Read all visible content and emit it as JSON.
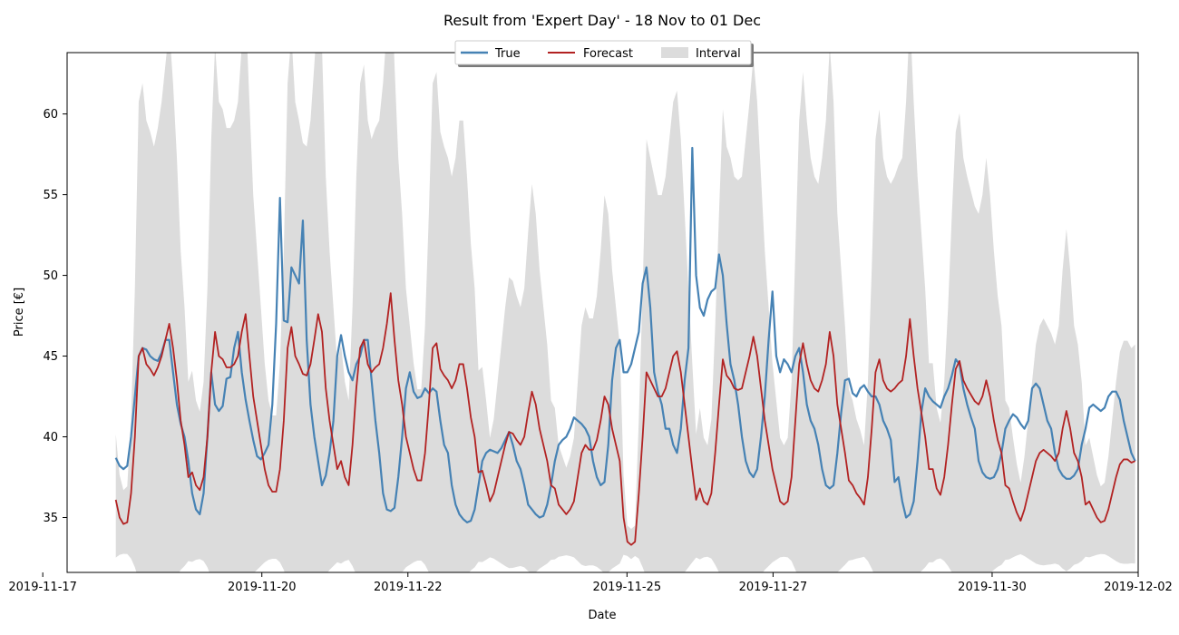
{
  "chart_data": {
    "type": "line",
    "title": "Result from 'Expert Day' - 18 Nov to 01 Dec",
    "xlabel": "Date",
    "ylabel": "Price [€]",
    "xlim": [
      "2019-11-17 08:00",
      "2019-12-02 00:00"
    ],
    "ylim": [
      31.6,
      63.8
    ],
    "x_ticks": [
      "2019-11-17",
      "2019-11-20",
      "2019-11-22",
      "2019-11-25",
      "2019-11-27",
      "2019-11-30",
      "2019-12-02"
    ],
    "y_ticks": [
      35,
      40,
      45,
      50,
      55,
      60
    ],
    "legend": {
      "placement": "top-center",
      "entries": [
        "True",
        "Forecast",
        "Interval"
      ]
    },
    "colors": {
      "true": "#4682b4",
      "forecast": "#b22222",
      "interval": "#dcdcdc"
    },
    "x_start": "2019-11-18 00:00",
    "x_end": "2019-12-01 23:00",
    "series": [
      {
        "name": "True",
        "values": [
          38.7,
          38.2,
          38.0,
          38.2,
          40.0,
          42.5,
          45.0,
          45.5,
          45.4,
          45.0,
          44.8,
          44.7,
          45.2,
          46.0,
          46.0,
          44.0,
          42.0,
          40.8,
          40.0,
          38.5,
          36.5,
          35.5,
          35.2,
          36.5,
          40.0,
          44.0,
          42.0,
          41.6,
          41.9,
          43.6,
          43.7,
          45.5,
          46.5,
          44.0,
          42.3,
          41.0,
          39.8,
          38.8,
          38.6,
          39.0,
          39.5,
          42.0,
          47.0,
          54.8,
          47.2,
          47.1,
          50.5,
          50.0,
          49.5,
          53.4,
          46.0,
          42.0,
          40.0,
          38.5,
          37.0,
          37.6,
          39.0,
          41.0,
          45.0,
          46.3,
          45.0,
          44.0,
          43.5,
          44.5,
          45.0,
          46.0,
          46.0,
          43.5,
          41.0,
          39.0,
          36.5,
          35.5,
          35.4,
          35.6,
          37.5,
          40.0,
          43.0,
          44.0,
          42.8,
          42.4,
          42.5,
          43.0,
          42.7,
          43.0,
          42.8,
          41.0,
          39.5,
          39.0,
          37.0,
          35.8,
          35.2,
          34.9,
          34.7,
          34.8,
          35.5,
          37.0,
          38.5,
          39.0,
          39.2,
          39.1,
          39.0,
          39.3,
          39.8,
          40.3,
          39.5,
          38.5,
          38.0,
          37.0,
          35.8,
          35.5,
          35.2,
          35.0,
          35.1,
          35.8,
          37.0,
          38.5,
          39.5,
          39.8,
          40.0,
          40.5,
          41.2,
          41.0,
          40.8,
          40.5,
          40.0,
          38.5,
          37.5,
          37.0,
          37.2,
          39.5,
          43.5,
          45.5,
          46.0,
          44.0,
          44.0,
          44.5,
          45.5,
          46.5,
          49.5,
          50.5,
          48.0,
          44.0,
          42.8,
          42.0,
          40.5,
          40.5,
          39.5,
          39.0,
          40.5,
          43.5,
          45.5,
          57.9,
          50.0,
          48.0,
          47.5,
          48.5,
          49.0,
          49.2,
          51.3,
          50.0,
          47.0,
          44.5,
          43.5,
          42.0,
          40.0,
          38.5,
          37.8,
          37.5,
          38.0,
          40.0,
          42.5,
          46.0,
          49.0,
          45.0,
          44.0,
          44.8,
          44.5,
          44.0,
          45.0,
          45.5,
          44.0,
          42.0,
          41.0,
          40.5,
          39.5,
          38.0,
          37.0,
          36.8,
          37.0,
          39.0,
          41.5,
          43.5,
          43.6,
          42.7,
          42.5,
          43.0,
          43.2,
          42.8,
          42.5,
          42.5,
          42.0,
          41.0,
          40.5,
          39.8,
          37.2,
          37.5,
          36.0,
          35.0,
          35.2,
          36.0,
          38.5,
          41.5,
          43.0,
          42.5,
          42.2,
          42.0,
          41.8,
          42.5,
          43.0,
          43.8,
          44.8,
          44.5,
          43.0,
          42.0,
          41.2,
          40.5,
          38.5,
          37.8,
          37.5,
          37.4,
          37.5,
          38.0,
          39.0,
          40.5,
          41.0,
          41.4,
          41.2,
          40.8,
          40.5,
          41.0,
          43.0,
          43.3,
          43.0,
          42.0,
          41.0,
          40.5,
          39.0,
          38.0,
          37.6,
          37.4,
          37.4,
          37.6,
          38.0,
          39.5,
          40.5,
          41.8,
          42.0,
          41.8,
          41.6,
          41.8,
          42.5,
          42.8,
          42.8,
          42.3,
          41.0,
          40.0,
          39.0,
          38.5
        ]
      },
      {
        "name": "Forecast",
        "values": [
          36.1,
          35.0,
          34.6,
          34.7,
          36.5,
          40.0,
          45.0,
          45.5,
          44.5,
          44.2,
          43.8,
          44.3,
          45.0,
          46.0,
          47.0,
          45.5,
          43.5,
          41.0,
          39.5,
          37.5,
          37.8,
          37.0,
          36.7,
          37.5,
          40.0,
          44.0,
          46.5,
          45.0,
          44.8,
          44.3,
          44.3,
          44.5,
          45.0,
          46.5,
          47.6,
          45.0,
          42.5,
          41.0,
          39.5,
          38.0,
          37.0,
          36.6,
          36.6,
          38.0,
          41.0,
          45.5,
          46.8,
          45.0,
          44.5,
          43.9,
          43.8,
          44.5,
          46.0,
          47.6,
          46.5,
          43.0,
          41.0,
          39.5,
          38.0,
          38.5,
          37.5,
          37.0,
          39.5,
          43.0,
          45.5,
          46.0,
          44.5,
          44.0,
          44.3,
          44.5,
          45.5,
          47.0,
          48.9,
          46.0,
          43.5,
          42.0,
          40.0,
          39.0,
          38.0,
          37.3,
          37.3,
          39.0,
          42.0,
          45.5,
          45.8,
          44.2,
          43.8,
          43.5,
          43.0,
          43.5,
          44.5,
          44.5,
          43.0,
          41.2,
          40.0,
          37.8,
          37.9,
          37.0,
          36.0,
          36.5,
          37.5,
          38.5,
          39.5,
          40.3,
          40.2,
          39.8,
          39.5,
          40.0,
          41.5,
          42.8,
          42.0,
          40.5,
          39.5,
          38.5,
          37.0,
          36.8,
          35.8,
          35.5,
          35.2,
          35.5,
          36.0,
          37.5,
          39.0,
          39.5,
          39.2,
          39.2,
          39.8,
          41.0,
          42.5,
          42.0,
          40.5,
          39.5,
          38.5,
          35.0,
          33.5,
          33.3,
          33.5,
          36.5,
          40.0,
          44.0,
          43.5,
          43.0,
          42.5,
          42.5,
          43.0,
          44.0,
          45.0,
          45.3,
          44.0,
          42.0,
          40.0,
          38.0,
          36.1,
          36.8,
          36.0,
          35.8,
          36.5,
          39.0,
          42.0,
          44.8,
          43.8,
          43.5,
          43.0,
          42.9,
          43.0,
          44.0,
          45.0,
          46.2,
          45.0,
          43.0,
          41.0,
          39.5,
          38.0,
          37.0,
          36.0,
          35.8,
          36.0,
          37.5,
          41.0,
          44.5,
          45.8,
          44.5,
          43.5,
          43.0,
          42.8,
          43.5,
          44.5,
          46.5,
          45.0,
          42.0,
          40.5,
          39.0,
          37.3,
          37.0,
          36.5,
          36.2,
          35.8,
          37.5,
          40.5,
          44.0,
          44.8,
          43.5,
          43.0,
          42.8,
          43.0,
          43.3,
          43.5,
          45.0,
          47.3,
          45.0,
          43.0,
          41.5,
          40.0,
          38.0,
          38.0,
          36.8,
          36.4,
          37.5,
          39.5,
          42.0,
          44.2,
          44.7,
          43.5,
          43.0,
          42.6,
          42.2,
          42.0,
          42.5,
          43.5,
          42.5,
          41.0,
          39.8,
          39.0,
          37.0,
          36.8,
          36.0,
          35.3,
          34.8,
          35.5,
          36.5,
          37.5,
          38.5,
          39.0,
          39.2,
          39.0,
          38.8,
          38.5,
          39.0,
          40.5,
          41.6,
          40.5,
          39.0,
          38.5,
          37.5,
          35.8,
          36.0,
          35.5,
          35.0,
          34.7,
          34.8,
          35.5,
          36.5,
          37.5,
          38.3,
          38.6,
          38.6,
          38.4,
          38.5,
          39.5,
          40.5,
          40.2,
          39.5,
          38.5,
          38.0,
          36.5
        ]
      }
    ]
  }
}
